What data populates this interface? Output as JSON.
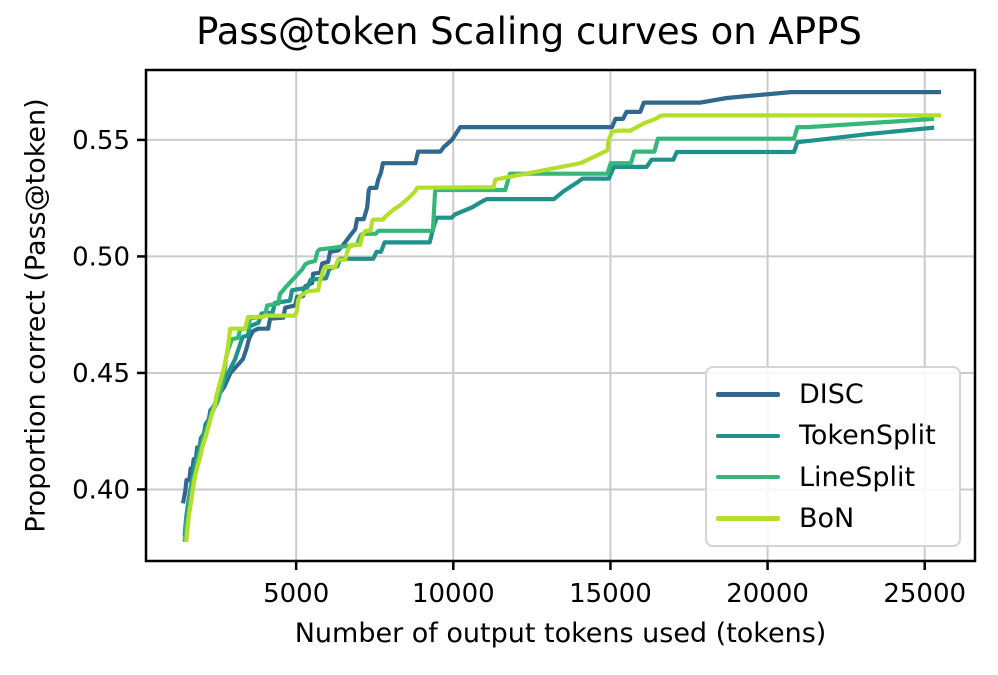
{
  "title": "Pass@token Scaling curves on APPS",
  "chart_data": {
    "type": "line",
    "title": "Pass@token Scaling curves on APPS",
    "xlabel": "Number of output tokens used (tokens)",
    "ylabel": "Proportion correct (Pass@token)",
    "xlim": [
      222,
      26600
    ],
    "ylim": [
      0.3693,
      0.58
    ],
    "xticks": [
      5000,
      10000,
      15000,
      20000,
      25000
    ],
    "yticks": [
      "0.40",
      "0.45",
      "0.50",
      "0.55"
    ],
    "ytick_values": [
      0.4,
      0.45,
      0.5,
      0.55
    ],
    "grid": true,
    "grid_color": "#cbcbcb",
    "spine_color": "#000000",
    "legend_position": "lower right",
    "series": [
      {
        "name": "DISC",
        "color": "#31688e",
        "points": [
          [
            1400,
            0.394
          ],
          [
            1470,
            0.399
          ],
          [
            1510,
            0.404
          ],
          [
            1600,
            0.404
          ],
          [
            1640,
            0.409
          ],
          [
            1700,
            0.409
          ],
          [
            1740,
            0.413
          ],
          [
            1810,
            0.413
          ],
          [
            1850,
            0.418
          ],
          [
            1930,
            0.418
          ],
          [
            1970,
            0.422
          ],
          [
            2070,
            0.424
          ],
          [
            2120,
            0.428
          ],
          [
            2220,
            0.43
          ],
          [
            2270,
            0.434
          ],
          [
            2410,
            0.436
          ],
          [
            2510,
            0.44
          ],
          [
            2710,
            0.444
          ],
          [
            2910,
            0.45
          ],
          [
            3110,
            0.453
          ],
          [
            3310,
            0.456
          ],
          [
            3410,
            0.46
          ],
          [
            3510,
            0.465
          ],
          [
            3630,
            0.468
          ],
          [
            3790,
            0.469
          ],
          [
            4110,
            0.469
          ],
          [
            4170,
            0.4733
          ],
          [
            4590,
            0.4737
          ],
          [
            4650,
            0.478
          ],
          [
            4970,
            0.479
          ],
          [
            5030,
            0.4826
          ],
          [
            5220,
            0.483
          ],
          [
            5290,
            0.4872
          ],
          [
            5510,
            0.4886
          ],
          [
            5540,
            0.4926
          ],
          [
            5765,
            0.493
          ],
          [
            5830,
            0.497
          ],
          [
            6020,
            0.4977
          ],
          [
            6080,
            0.502
          ],
          [
            6340,
            0.5026
          ],
          [
            6500,
            0.505
          ],
          [
            6720,
            0.509
          ],
          [
            6880,
            0.5117
          ],
          [
            6940,
            0.516
          ],
          [
            7150,
            0.516
          ],
          [
            7260,
            0.521
          ],
          [
            7310,
            0.5285
          ],
          [
            7350,
            0.5294
          ],
          [
            7550,
            0.5294
          ],
          [
            7610,
            0.533
          ],
          [
            7700,
            0.536
          ],
          [
            7760,
            0.54
          ],
          [
            8790,
            0.54
          ],
          [
            8880,
            0.545
          ],
          [
            9590,
            0.545
          ],
          [
            9700,
            0.547
          ],
          [
            9960,
            0.55
          ],
          [
            10220,
            0.5555
          ],
          [
            15050,
            0.5555
          ],
          [
            15160,
            0.559
          ],
          [
            15400,
            0.559
          ],
          [
            15510,
            0.562
          ],
          [
            15950,
            0.562
          ],
          [
            16060,
            0.566
          ],
          [
            17870,
            0.566
          ],
          [
            18700,
            0.568
          ],
          [
            20740,
            0.5705
          ],
          [
            25520,
            0.5705
          ]
        ]
      },
      {
        "name": "TokenSplit",
        "color": "#21918c",
        "points": [
          [
            1450,
            0.38
          ],
          [
            1500,
            0.388
          ],
          [
            1560,
            0.394
          ],
          [
            1610,
            0.398
          ],
          [
            1660,
            0.402
          ],
          [
            1710,
            0.406
          ],
          [
            1760,
            0.41
          ],
          [
            1860,
            0.414
          ],
          [
            1910,
            0.418
          ],
          [
            2010,
            0.422
          ],
          [
            2110,
            0.426
          ],
          [
            2210,
            0.43
          ],
          [
            2310,
            0.434
          ],
          [
            2460,
            0.438
          ],
          [
            2610,
            0.443
          ],
          [
            2760,
            0.448
          ],
          [
            2910,
            0.452
          ],
          [
            3060,
            0.456
          ],
          [
            3160,
            0.46
          ],
          [
            3300,
            0.4655
          ],
          [
            3460,
            0.466
          ],
          [
            3520,
            0.47
          ],
          [
            3800,
            0.4715
          ],
          [
            3900,
            0.4755
          ],
          [
            4250,
            0.4759
          ],
          [
            4320,
            0.48
          ],
          [
            4800,
            0.481
          ],
          [
            4870,
            0.4855
          ],
          [
            5350,
            0.4866
          ],
          [
            5460,
            0.49
          ],
          [
            5950,
            0.4906
          ],
          [
            6060,
            0.4948
          ],
          [
            6310,
            0.4957
          ],
          [
            6400,
            0.499
          ],
          [
            7450,
            0.499
          ],
          [
            7560,
            0.502
          ],
          [
            7700,
            0.502
          ],
          [
            7810,
            0.506
          ],
          [
            9250,
            0.506
          ],
          [
            9360,
            0.512
          ],
          [
            9470,
            0.5166
          ],
          [
            9950,
            0.5166
          ],
          [
            10050,
            0.518
          ],
          [
            10600,
            0.5211
          ],
          [
            10900,
            0.5235
          ],
          [
            11060,
            0.5246
          ],
          [
            13200,
            0.5246
          ],
          [
            13510,
            0.528
          ],
          [
            14000,
            0.5323
          ],
          [
            14110,
            0.5334
          ],
          [
            14950,
            0.5334
          ],
          [
            15110,
            0.5384
          ],
          [
            16150,
            0.5384
          ],
          [
            16310,
            0.5415
          ],
          [
            17000,
            0.5415
          ],
          [
            17110,
            0.5448
          ],
          [
            20840,
            0.5448
          ],
          [
            20950,
            0.549
          ],
          [
            21600,
            0.55
          ],
          [
            23200,
            0.5525
          ],
          [
            25300,
            0.5553
          ]
        ]
      },
      {
        "name": "LineSplit",
        "color": "#35b779",
        "points": [
          [
            1450,
            0.3775
          ],
          [
            1510,
            0.385
          ],
          [
            1560,
            0.39
          ],
          [
            1610,
            0.395
          ],
          [
            1660,
            0.4
          ],
          [
            1720,
            0.404
          ],
          [
            1810,
            0.408
          ],
          [
            1870,
            0.413
          ],
          [
            1960,
            0.417
          ],
          [
            2060,
            0.422
          ],
          [
            2160,
            0.426
          ],
          [
            2260,
            0.43
          ],
          [
            2360,
            0.434
          ],
          [
            2510,
            0.438
          ],
          [
            2610,
            0.443
          ],
          [
            2680,
            0.448
          ],
          [
            2740,
            0.4525
          ],
          [
            2760,
            0.456
          ],
          [
            2835,
            0.46
          ],
          [
            2960,
            0.4645
          ],
          [
            3150,
            0.465
          ],
          [
            3220,
            0.4687
          ],
          [
            3470,
            0.4692
          ],
          [
            3530,
            0.4733
          ],
          [
            4010,
            0.4746
          ],
          [
            4080,
            0.479
          ],
          [
            4430,
            0.4797
          ],
          [
            4490,
            0.484
          ],
          [
            4590,
            0.4855
          ],
          [
            4650,
            0.4866
          ],
          [
            5190,
            0.4944
          ],
          [
            5290,
            0.4966
          ],
          [
            5400,
            0.4974
          ],
          [
            5600,
            0.498
          ],
          [
            5680,
            0.5021
          ],
          [
            5750,
            0.503
          ],
          [
            6940,
            0.505
          ],
          [
            6990,
            0.507
          ],
          [
            7050,
            0.509
          ],
          [
            7110,
            0.5097
          ],
          [
            7530,
            0.5097
          ],
          [
            7620,
            0.511
          ],
          [
            9350,
            0.511
          ],
          [
            9420,
            0.528
          ],
          [
            9500,
            0.5285
          ],
          [
            11650,
            0.5285
          ],
          [
            11800,
            0.5355
          ],
          [
            14900,
            0.5355
          ],
          [
            15010,
            0.54
          ],
          [
            15650,
            0.54
          ],
          [
            15760,
            0.545
          ],
          [
            16400,
            0.545
          ],
          [
            16510,
            0.5505
          ],
          [
            20840,
            0.5505
          ],
          [
            20950,
            0.5555
          ],
          [
            21300,
            0.5555
          ],
          [
            25300,
            0.559
          ]
        ]
      },
      {
        "name": "BoN",
        "color": "#b5de2b",
        "points": [
          [
            1500,
            0.3775
          ],
          [
            1550,
            0.384
          ],
          [
            1600,
            0.39
          ],
          [
            1660,
            0.395
          ],
          [
            1700,
            0.399
          ],
          [
            1760,
            0.404
          ],
          [
            1860,
            0.41
          ],
          [
            1950,
            0.414
          ],
          [
            2010,
            0.418
          ],
          [
            2110,
            0.422
          ],
          [
            2210,
            0.427
          ],
          [
            2310,
            0.432
          ],
          [
            2410,
            0.436
          ],
          [
            2460,
            0.44
          ],
          [
            2540,
            0.444
          ],
          [
            2620,
            0.448
          ],
          [
            2700,
            0.452
          ],
          [
            2760,
            0.456
          ],
          [
            2820,
            0.46
          ],
          [
            2860,
            0.4645
          ],
          [
            2900,
            0.469
          ],
          [
            3375,
            0.469
          ],
          [
            3470,
            0.474
          ],
          [
            3950,
            0.474
          ],
          [
            4010,
            0.4746
          ],
          [
            4970,
            0.4746
          ],
          [
            5030,
            0.477
          ],
          [
            5060,
            0.481
          ],
          [
            5130,
            0.483
          ],
          [
            5350,
            0.485
          ],
          [
            5700,
            0.4855
          ],
          [
            5765,
            0.49
          ],
          [
            5830,
            0.4924
          ],
          [
            5860,
            0.494
          ],
          [
            5920,
            0.4955
          ],
          [
            6240,
            0.4955
          ],
          [
            6310,
            0.4977
          ],
          [
            6340,
            0.4986
          ],
          [
            6560,
            0.4986
          ],
          [
            6625,
            0.502
          ],
          [
            6720,
            0.505
          ],
          [
            7040,
            0.505
          ],
          [
            7100,
            0.509
          ],
          [
            7200,
            0.511
          ],
          [
            7360,
            0.511
          ],
          [
            7420,
            0.515
          ],
          [
            7450,
            0.5158
          ],
          [
            7770,
            0.5158
          ],
          [
            7830,
            0.517
          ],
          [
            8090,
            0.52
          ],
          [
            8310,
            0.522
          ],
          [
            8570,
            0.525
          ],
          [
            8790,
            0.528
          ],
          [
            8850,
            0.5295
          ],
          [
            11280,
            0.5297
          ],
          [
            11340,
            0.533
          ],
          [
            11720,
            0.534
          ],
          [
            14045,
            0.54
          ],
          [
            14905,
            0.5455
          ],
          [
            14940,
            0.55
          ],
          [
            15060,
            0.5535
          ],
          [
            15255,
            0.554
          ],
          [
            15640,
            0.554
          ],
          [
            16050,
            0.557
          ],
          [
            16430,
            0.559
          ],
          [
            16590,
            0.5603
          ],
          [
            16690,
            0.5605
          ],
          [
            25520,
            0.5605
          ]
        ]
      }
    ]
  },
  "layout_note": "lines drawn in order DISC, TokenSplit, LineSplit, BoN"
}
